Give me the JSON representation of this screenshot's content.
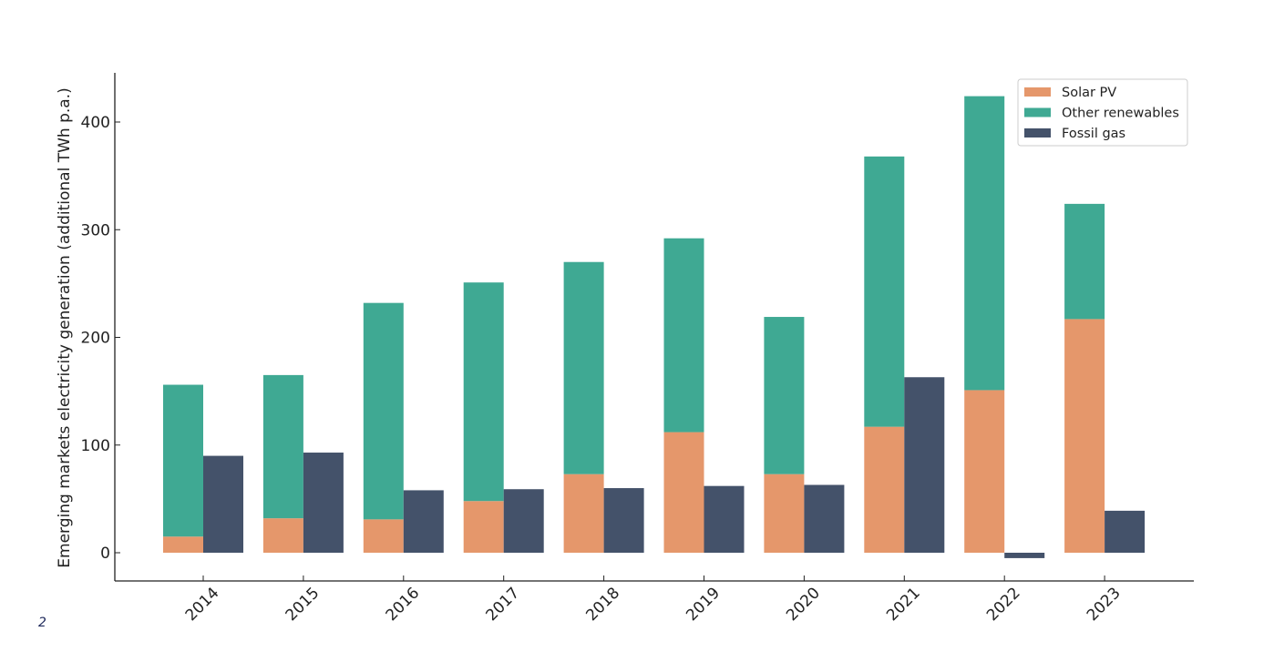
{
  "page_number": "2",
  "colors": {
    "solar": "#E5976B",
    "other": "#3FA993",
    "gas": "#44526A"
  },
  "chart_data": {
    "type": "bar",
    "mode": "stacked_and_grouped",
    "title": "",
    "xlabel": "",
    "ylabel": "Emerging markets electricity generation (additional TWh p.a.)",
    "categories": [
      "2014",
      "2015",
      "2016",
      "2017",
      "2018",
      "2019",
      "2020",
      "2021",
      "2022",
      "2023"
    ],
    "yticks": [
      0,
      100,
      200,
      300,
      400
    ],
    "ylim": [
      -27,
      445
    ],
    "grid": false,
    "legend_position": "top-right",
    "series": [
      {
        "name": "Solar PV",
        "stack": "renewables",
        "color_key": "solar",
        "values": [
          15,
          32,
          31,
          48,
          73,
          112,
          73,
          117,
          151,
          217
        ]
      },
      {
        "name": "Other renewables",
        "stack": "renewables",
        "color_key": "other",
        "values": [
          141,
          133,
          201,
          203,
          197,
          180,
          146,
          251,
          273,
          107
        ]
      },
      {
        "name": "Fossil gas",
        "stack": "gas",
        "color_key": "gas",
        "values": [
          90,
          93,
          58,
          59,
          60,
          62,
          63,
          163,
          -5,
          39
        ]
      }
    ]
  }
}
